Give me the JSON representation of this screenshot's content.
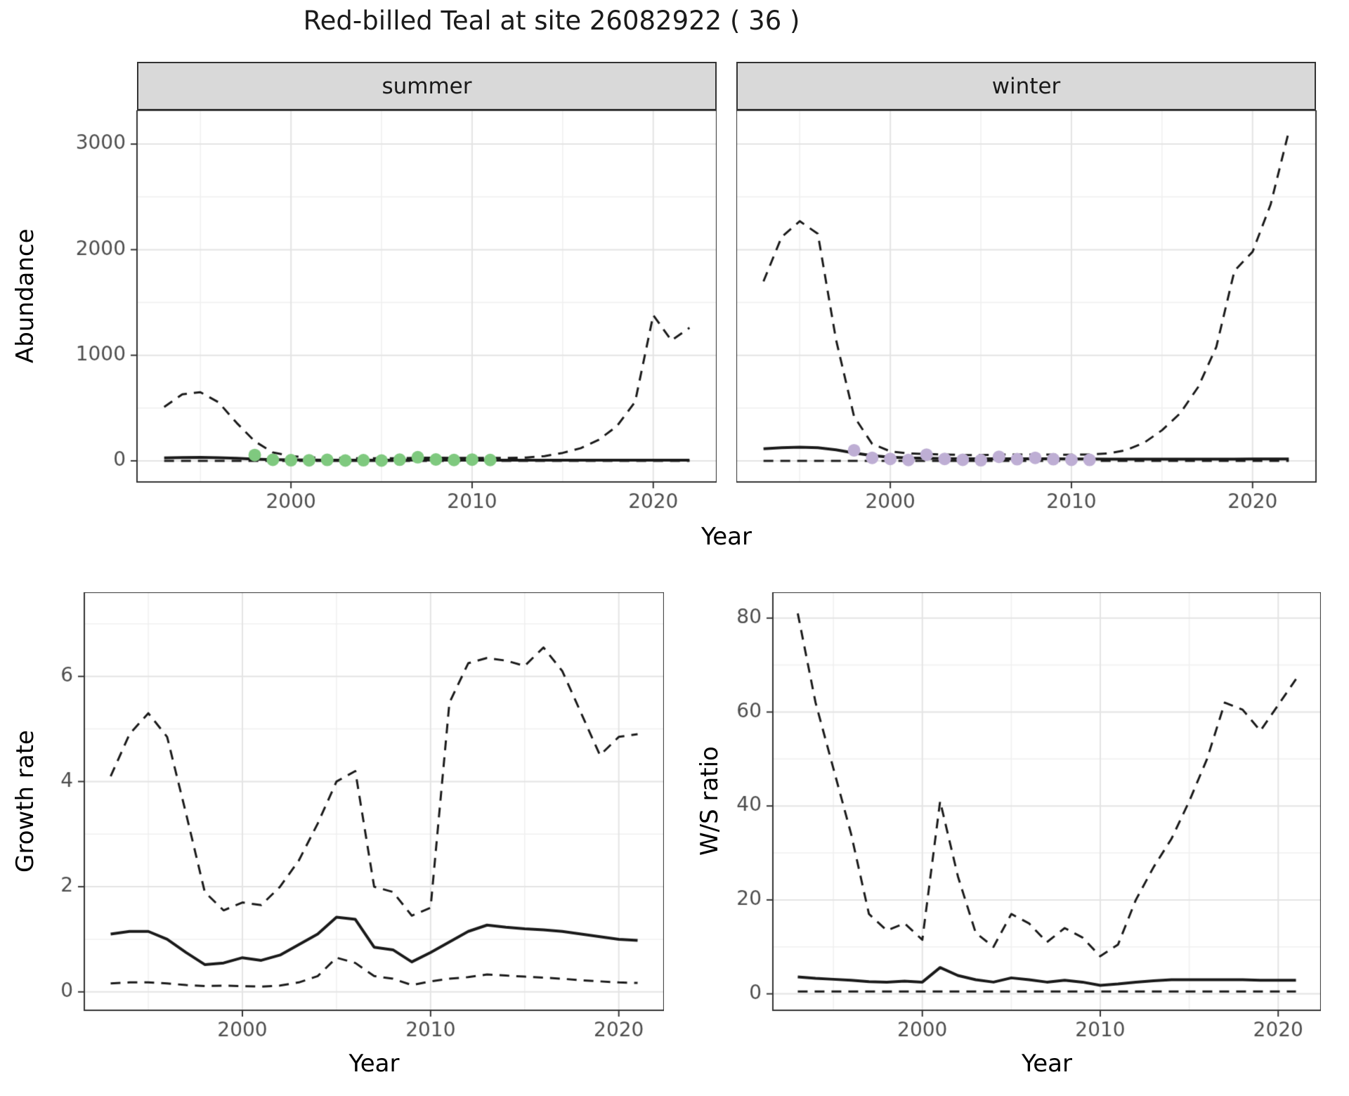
{
  "title": "Red-billed Teal at site 26082922 ( 36 )",
  "colors": {
    "background": "#ffffff",
    "line": "#1a1a1a",
    "summer_points": "#7fc97f",
    "winter_points": "#beaed4",
    "grid_major": "#e4e4e4",
    "grid_minor": "#f0f0f0",
    "panel_border": "#333333",
    "strip_bg": "#d9d9d9",
    "tick_text": "#4d4d4d"
  },
  "top_panel": {
    "ylab": "Abundance",
    "xlab": "Year",
    "facets": [
      "summer",
      "winter"
    ]
  },
  "bottom_left": {
    "ylab": "Growth rate",
    "xlab": "Year"
  },
  "bottom_right": {
    "ylab": "W/S ratio",
    "xlab": "Year"
  },
  "chart_data": [
    {
      "id": "abundance-summer",
      "type": "line",
      "facet": "summer",
      "xlabel": "Year",
      "ylabel": "Abundance",
      "xlim": [
        1991.5,
        2023.5
      ],
      "ylim": [
        -200,
        3320
      ],
      "xticks": {
        "values": [
          2000,
          2010,
          2020
        ],
        "labels": [
          "2000",
          "2010",
          "2020"
        ],
        "minor": [
          1995,
          2005,
          2015
        ]
      },
      "yticks": {
        "values": [
          0,
          1000,
          2000,
          3000
        ],
        "labels": [
          "0",
          "1000",
          "2000",
          "3000"
        ],
        "minor": [
          500,
          1500,
          2500
        ]
      },
      "x": [
        1993,
        1994,
        1995,
        1996,
        1997,
        1998,
        1999,
        2000,
        2001,
        2002,
        2003,
        2004,
        2005,
        2006,
        2007,
        2008,
        2009,
        2010,
        2011,
        2012,
        2013,
        2014,
        2015,
        2016,
        2017,
        2018,
        2019,
        2020,
        2021,
        2022
      ],
      "series": [
        {
          "name": "upper_95_ci",
          "style": "dashed",
          "values": [
            510,
            630,
            650,
            555,
            360,
            185,
            80,
            45,
            32,
            28,
            25,
            24,
            24,
            25,
            30,
            30,
            28,
            28,
            28,
            28,
            32,
            45,
            75,
            120,
            200,
            330,
            560,
            1380,
            1140,
            1260
          ]
        },
        {
          "name": "lower_95_ci",
          "style": "dashed",
          "values": [
            0,
            0,
            0,
            0,
            0,
            0,
            0,
            0,
            0,
            0,
            0,
            0,
            0,
            0,
            0,
            0,
            0,
            0,
            0,
            0,
            0,
            0,
            0,
            0,
            0,
            0,
            0,
            0,
            0,
            0
          ]
        },
        {
          "name": "median",
          "style": "solid",
          "values": [
            28,
            32,
            33,
            30,
            24,
            17,
            12,
            9,
            8,
            7,
            7,
            7,
            7,
            7,
            8,
            8,
            7,
            7,
            7,
            6,
            6,
            6,
            6,
            6,
            6,
            6,
            6,
            7,
            7,
            7
          ]
        },
        {
          "name": "observed_counts",
          "style": "points",
          "color": "#7fc97f",
          "x": [
            1998,
            1999,
            2000,
            2001,
            2002,
            2003,
            2004,
            2005,
            2006,
            2007,
            2008,
            2009,
            2010,
            2011
          ],
          "values": [
            55,
            10,
            6,
            5,
            9,
            3,
            6,
            3,
            11,
            34,
            13,
            8,
            12,
            8
          ]
        }
      ]
    },
    {
      "id": "abundance-winter",
      "type": "line",
      "facet": "winter",
      "xlabel": "Year",
      "ylabel": "Abundance",
      "xlim": [
        1991.5,
        2023.5
      ],
      "ylim": [
        -200,
        3320
      ],
      "xticks": {
        "values": [
          2000,
          2010,
          2020
        ],
        "labels": [
          "2000",
          "2010",
          "2020"
        ],
        "minor": [
          1995,
          2005,
          2015
        ]
      },
      "yticks": {
        "values": [
          0,
          1000,
          2000,
          3000
        ],
        "labels": [
          "0",
          "1000",
          "2000",
          "3000"
        ],
        "minor": [
          500,
          1500,
          2500
        ]
      },
      "x": [
        1993,
        1994,
        1995,
        1996,
        1997,
        1998,
        1999,
        2000,
        2001,
        2002,
        2003,
        2004,
        2005,
        2006,
        2007,
        2008,
        2009,
        2010,
        2011,
        2012,
        2013,
        2014,
        2015,
        2016,
        2017,
        2018,
        2019,
        2020,
        2021,
        2022
      ],
      "series": [
        {
          "name": "upper_95_ci",
          "style": "dashed",
          "values": [
            1700,
            2120,
            2270,
            2150,
            1150,
            420,
            160,
            90,
            70,
            65,
            60,
            55,
            55,
            58,
            60,
            60,
            58,
            58,
            60,
            70,
            100,
            170,
            290,
            450,
            700,
            1080,
            1800,
            1980,
            2430,
            3120
          ]
        },
        {
          "name": "lower_95_ci",
          "style": "dashed",
          "values": [
            0,
            0,
            0,
            0,
            0,
            0,
            0,
            0,
            0,
            0,
            0,
            0,
            0,
            0,
            0,
            0,
            0,
            0,
            0,
            0,
            0,
            0,
            0,
            0,
            0,
            0,
            0,
            0,
            0,
            0
          ]
        },
        {
          "name": "median",
          "style": "solid",
          "values": [
            115,
            125,
            130,
            125,
            105,
            75,
            50,
            35,
            28,
            25,
            22,
            20,
            20,
            20,
            20,
            20,
            19,
            18,
            18,
            17,
            17,
            17,
            17,
            17,
            17,
            17,
            17,
            18,
            18,
            18
          ]
        },
        {
          "name": "observed_counts",
          "style": "points",
          "color": "#beaed4",
          "x": [
            1998,
            1999,
            2000,
            2001,
            2002,
            2003,
            2004,
            2005,
            2006,
            2007,
            2008,
            2009,
            2010,
            2011
          ],
          "values": [
            100,
            28,
            18,
            8,
            58,
            18,
            10,
            6,
            38,
            16,
            28,
            16,
            10,
            9
          ]
        }
      ]
    },
    {
      "id": "growth-rate",
      "type": "line",
      "xlabel": "Year",
      "ylabel": "Growth rate",
      "xlim": [
        1991.6,
        2022.4
      ],
      "ylim": [
        -0.35,
        7.6
      ],
      "xticks": {
        "values": [
          2000,
          2010,
          2020
        ],
        "labels": [
          "2000",
          "2010",
          "2020"
        ],
        "minor": [
          1995,
          2005,
          2015
        ]
      },
      "yticks": {
        "values": [
          0,
          2,
          4,
          6
        ],
        "labels": [
          "0",
          "2",
          "4",
          "6"
        ],
        "minor": [
          1,
          3,
          5,
          7
        ]
      },
      "x": [
        1993,
        1994,
        1995,
        1996,
        1997,
        1998,
        1999,
        2000,
        2001,
        2002,
        2003,
        2004,
        2005,
        2006,
        2007,
        2008,
        2009,
        2010,
        2011,
        2012,
        2013,
        2014,
        2015,
        2016,
        2017,
        2018,
        2019,
        2020,
        2021
      ],
      "series": [
        {
          "name": "upper_95_ci",
          "style": "dashed",
          "values": [
            4.1,
            4.9,
            5.3,
            4.85,
            3.4,
            1.9,
            1.55,
            1.7,
            1.65,
            2.0,
            2.5,
            3.2,
            4.0,
            4.2,
            2.0,
            1.9,
            1.45,
            1.6,
            5.5,
            6.25,
            6.35,
            6.3,
            6.2,
            6.55,
            6.1,
            5.3,
            4.5,
            4.85,
            4.9
          ]
        },
        {
          "name": "lower_95_ci",
          "style": "dashed",
          "values": [
            0.16,
            0.18,
            0.18,
            0.16,
            0.13,
            0.11,
            0.12,
            0.11,
            0.1,
            0.12,
            0.18,
            0.3,
            0.65,
            0.55,
            0.3,
            0.25,
            0.13,
            0.2,
            0.25,
            0.28,
            0.33,
            0.31,
            0.29,
            0.27,
            0.25,
            0.22,
            0.2,
            0.18,
            0.17
          ]
        },
        {
          "name": "median",
          "style": "solid",
          "values": [
            1.1,
            1.15,
            1.15,
            1.0,
            0.75,
            0.52,
            0.55,
            0.65,
            0.6,
            0.7,
            0.9,
            1.1,
            1.42,
            1.38,
            0.85,
            0.8,
            0.57,
            0.75,
            0.95,
            1.15,
            1.27,
            1.23,
            1.2,
            1.18,
            1.15,
            1.1,
            1.05,
            1.0,
            0.98
          ]
        }
      ]
    },
    {
      "id": "ws-ratio",
      "type": "line",
      "xlabel": "Year",
      "ylabel": "W/S ratio",
      "xlim": [
        1991.6,
        2022.4
      ],
      "ylim": [
        -3.5,
        85.5
      ],
      "xticks": {
        "values": [
          2000,
          2010,
          2020
        ],
        "labels": [
          "2000",
          "2010",
          "2020"
        ],
        "minor": [
          1995,
          2005,
          2015
        ]
      },
      "yticks": {
        "values": [
          0,
          20,
          40,
          60,
          80
        ],
        "labels": [
          "0",
          "20",
          "40",
          "60",
          "80"
        ],
        "minor": [
          10,
          30,
          50,
          70
        ]
      },
      "x": [
        1993,
        1994,
        1995,
        1996,
        1997,
        1998,
        1999,
        2000,
        2001,
        2002,
        2003,
        2004,
        2005,
        2006,
        2007,
        2008,
        2009,
        2010,
        2011,
        2012,
        2013,
        2014,
        2015,
        2016,
        2017,
        2018,
        2019,
        2020,
        2021
      ],
      "series": [
        {
          "name": "upper_95_ci",
          "style": "dashed",
          "values": [
            81,
            62,
            48,
            34,
            17,
            13.5,
            15,
            11.5,
            41,
            25,
            13,
            10,
            17,
            15,
            11,
            14,
            12,
            8,
            10.5,
            20,
            27,
            33,
            41,
            50,
            62,
            60.5,
            56,
            61.5,
            67
          ]
        },
        {
          "name": "lower_95_ci",
          "style": "dashed",
          "values": [
            0.5,
            0.5,
            0.5,
            0.5,
            0.5,
            0.5,
            0.5,
            0.5,
            0.5,
            0.5,
            0.5,
            0.5,
            0.5,
            0.5,
            0.5,
            0.5,
            0.5,
            0.5,
            0.5,
            0.5,
            0.5,
            0.5,
            0.5,
            0.5,
            0.5,
            0.5,
            0.5,
            0.5,
            0.5
          ]
        },
        {
          "name": "median",
          "style": "solid",
          "values": [
            3.6,
            3.3,
            3.1,
            2.9,
            2.6,
            2.5,
            2.7,
            2.5,
            5.6,
            3.9,
            3.0,
            2.5,
            3.4,
            3.0,
            2.5,
            2.9,
            2.5,
            1.8,
            2.1,
            2.5,
            2.8,
            3.0,
            3.0,
            3.0,
            3.0,
            3.0,
            2.9,
            2.9,
            2.9
          ]
        }
      ]
    }
  ]
}
